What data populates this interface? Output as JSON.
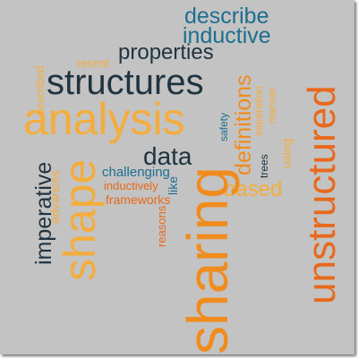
{
  "palette": {
    "orange": "#f08c1e",
    "light_orange": "#f4ad3c",
    "dark_orange": "#e8691c",
    "dark_slate": "#1f3340",
    "teal_blue": "#1c6f8f",
    "gray_bg": "#c3c3c3"
  },
  "words": {
    "describe": "describe",
    "inductive": "inductive",
    "unstructured": "unstructured",
    "properties": "properties",
    "recent": "recent",
    "described": "described",
    "structures": "structures",
    "analysis": "analysis",
    "definitions": "definitions",
    "safety": "safety",
    "separation": "separation",
    "manner": "manner",
    "using": "using",
    "trees": "trees",
    "data": "data",
    "imperative": "imperative",
    "advances": "advances",
    "challenging": "challenging",
    "like": "like",
    "inductively": "inductively",
    "based": "based",
    "frameworks": "frameworks",
    "reasons": "reasons",
    "shape": "shape",
    "sharing": "sharing"
  }
}
